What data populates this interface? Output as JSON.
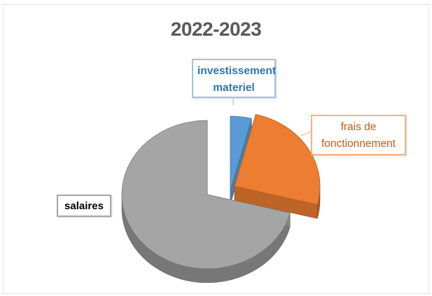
{
  "chart_data": {
    "type": "pie",
    "style": "3d-exploded",
    "title": "2022-2023",
    "labels": [
      "investissement materiel",
      "frais de fonctionnement",
      "salaires"
    ],
    "values": [
      4,
      25,
      71
    ],
    "colors": [
      "#5b9bd5",
      "#ed7d31",
      "#a5a5a5"
    ],
    "legend": "none",
    "data_labels": "callouts"
  },
  "callouts": {
    "invest_line1": "investissement",
    "invest_line2": "materiel",
    "frais_line1": "frais de",
    "frais_line2": "fonctionnement",
    "salaires": "salaires"
  }
}
